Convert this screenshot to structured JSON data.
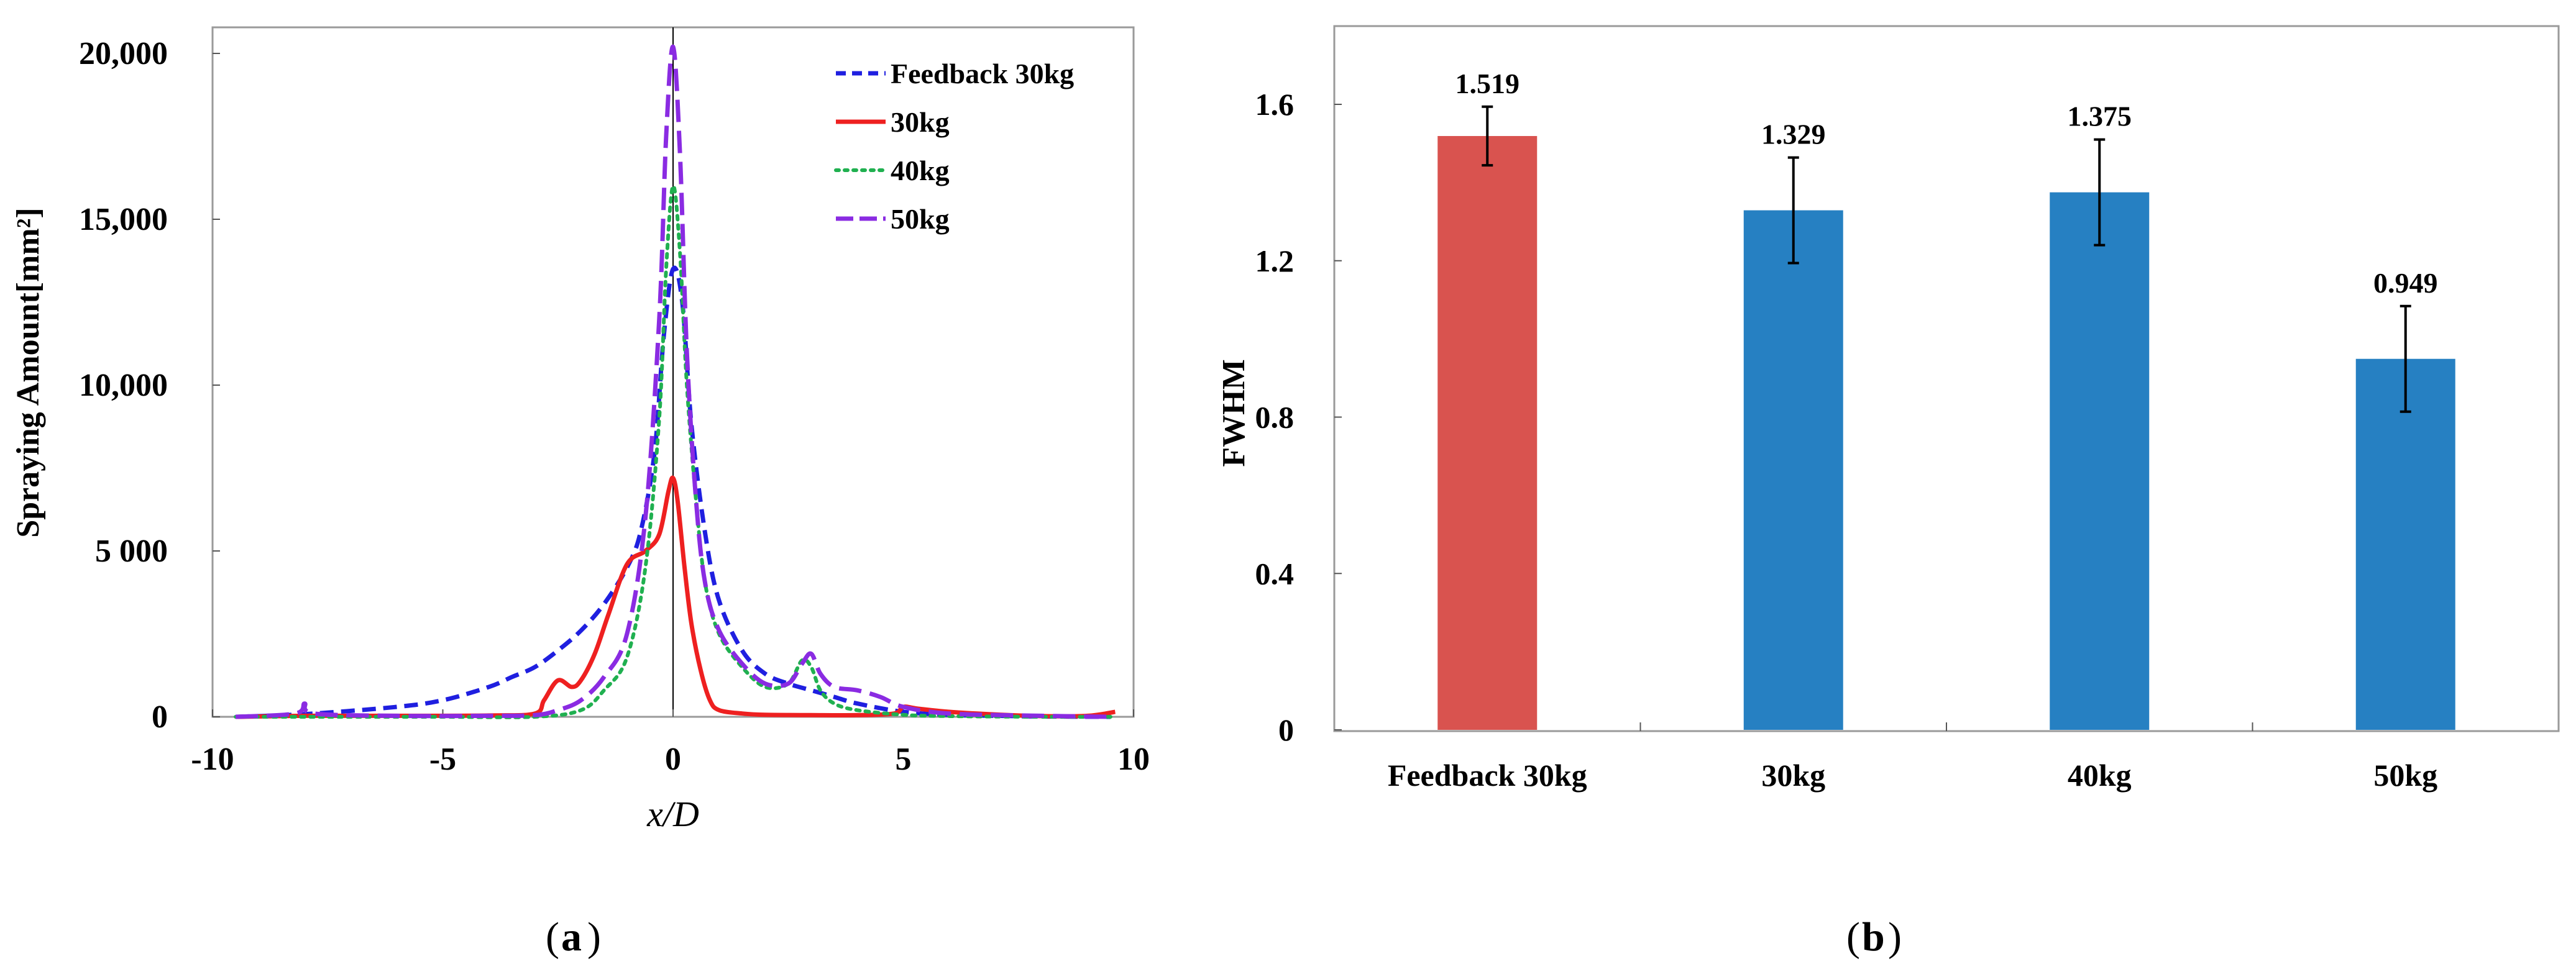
{
  "chart_data": [
    {
      "type": "line",
      "caption_letter": "a",
      "xlabel": "x/D",
      "ylabel": "Spraying Amount[mm²]",
      "xlim": [
        -10,
        10
      ],
      "ylim": [
        0,
        20000
      ],
      "x_ticks": [
        -10,
        -5,
        0,
        5,
        10
      ],
      "x_tick_labels": [
        "-10",
        "-5",
        "0",
        "5",
        "10"
      ],
      "y_ticks": [
        0,
        5000,
        10000,
        15000,
        20000
      ],
      "y_tick_labels": [
        "0",
        "5 000",
        "10,000",
        "15,000",
        "20,000"
      ],
      "legend_position": "top-right",
      "grid": false,
      "series": [
        {
          "name": "Feedback 30kg",
          "color": "#1f1fe0",
          "style": "dashed",
          "x": [
            -9.5,
            -8,
            -6,
            -5,
            -4,
            -3.5,
            -3,
            -2.5,
            -2,
            -1.5,
            -1,
            -0.7,
            -0.4,
            -0.2,
            0,
            0.2,
            0.4,
            0.7,
            1,
            1.5,
            2,
            2.5,
            3,
            3.5,
            4,
            5,
            6,
            7,
            8,
            9.5
          ],
          "y": [
            0,
            80,
            300,
            500,
            900,
            1200,
            1500,
            2000,
            2600,
            3400,
            4500,
            5600,
            8000,
            11500,
            13500,
            12500,
            8800,
            5500,
            3500,
            2000,
            1300,
            1000,
            800,
            600,
            400,
            150,
            60,
            30,
            10,
            0
          ]
        },
        {
          "name": "30kg",
          "color": "#ee2020",
          "style": "solid",
          "x": [
            -9.5,
            -8,
            -6,
            -4,
            -3,
            -2.8,
            -2.5,
            -2.2,
            -2,
            -1.7,
            -1.4,
            -1,
            -0.6,
            -0.3,
            -0.1,
            0,
            0.1,
            0.25,
            0.4,
            0.6,
            0.8,
            1,
            1.5,
            2,
            3,
            4,
            4.8,
            5,
            5.3,
            6,
            7,
            8,
            9,
            9.6
          ],
          "y": [
            0,
            30,
            30,
            40,
            100,
            500,
            1100,
            900,
            1100,
            1900,
            3100,
            4600,
            5000,
            5500,
            6800,
            7200,
            6500,
            4500,
            2800,
            1400,
            500,
            200,
            100,
            60,
            50,
            50,
            100,
            300,
            250,
            150,
            70,
            20,
            30,
            150
          ]
        },
        {
          "name": "40kg",
          "color": "#20b050",
          "style": "dotted",
          "x": [
            -9.5,
            -7,
            -5,
            -3,
            -2,
            -1.5,
            -1,
            -0.6,
            -0.3,
            -0.15,
            0,
            0.15,
            0.3,
            0.5,
            0.7,
            1,
            1.5,
            2,
            2.5,
            2.8,
            3,
            3.2,
            3.5,
            4,
            5,
            6,
            8,
            9.5
          ],
          "y": [
            0,
            0,
            0,
            0,
            200,
            800,
            1800,
            4500,
            9000,
            13500,
            16000,
            14000,
            10000,
            6500,
            4000,
            2500,
            1500,
            900,
            1000,
            1700,
            1500,
            800,
            400,
            200,
            60,
            20,
            0,
            0
          ],
          "anchors": [
            [
              -9.5,
              0
            ],
            [
              -7,
              0
            ],
            [
              -5,
              0
            ],
            [
              -3,
              0
            ],
            [
              -2,
              200
            ],
            [
              -1.5,
              800
            ],
            [
              -1,
              1800
            ],
            [
              -0.6,
              4500
            ],
            [
              -0.3,
              9000
            ],
            [
              -0.15,
              13500
            ],
            [
              0,
              16000
            ],
            [
              0.15,
              14000
            ],
            [
              0.3,
              10000
            ],
            [
              0.5,
              6500
            ],
            [
              0.7,
              4000
            ],
            [
              1,
              2500
            ],
            [
              1.5,
              1500
            ],
            [
              2,
              900
            ],
            [
              2.5,
              1000
            ],
            [
              2.8,
              1700
            ],
            [
              3,
              1500
            ],
            [
              3.2,
              800
            ],
            [
              3.5,
              400
            ],
            [
              4,
              200
            ],
            [
              5,
              60
            ],
            [
              6,
              20
            ],
            [
              8,
              0
            ],
            [
              9.5,
              0
            ]
          ]
        },
        {
          "name": "50kg",
          "color": "#8a2be2",
          "style": "longdash",
          "x": [
            -9.5,
            -8.2,
            -8,
            -7.8,
            -6,
            -4,
            -3,
            -2.5,
            -2,
            -1.5,
            -1,
            -0.6,
            -0.3,
            -0.15,
            0,
            0.15,
            0.3,
            0.5,
            0.7,
            1,
            1.5,
            2,
            2.5,
            2.8,
            3,
            3.2,
            3.5,
            4,
            4.5,
            5,
            6,
            8,
            9.5
          ],
          "y": [
            0,
            100,
            400,
            100,
            30,
            30,
            50,
            200,
            500,
            1200,
            2500,
            6000,
            12000,
            17500,
            20200,
            17000,
            11000,
            6500,
            4000,
            2600,
            1600,
            1000,
            1000,
            1600,
            1900,
            1300,
            900,
            800,
            600,
            300,
            100,
            30,
            0
          ]
        }
      ]
    },
    {
      "type": "bar",
      "caption_letter": "b",
      "ylabel": "FWHM",
      "xlabel": "",
      "ylim": [
        0,
        1.8
      ],
      "y_ticks": [
        0,
        0.4,
        0.8,
        1.2,
        1.6
      ],
      "y_tick_labels": [
        "0",
        "0.4",
        "0.8",
        "1.2",
        "1.6"
      ],
      "categories": [
        "Feedback 30kg",
        "30kg",
        "40kg",
        "50kg"
      ],
      "values": [
        1.519,
        1.329,
        1.375,
        0.949
      ],
      "value_labels": [
        "1.519",
        "1.329",
        "1.375",
        "0.949"
      ],
      "errors": [
        0.075,
        0.135,
        0.135,
        0.135
      ],
      "bar_colors": [
        "#d9534f",
        "#2680c2",
        "#2680c2",
        "#2680c2"
      ],
      "grid": false
    }
  ]
}
